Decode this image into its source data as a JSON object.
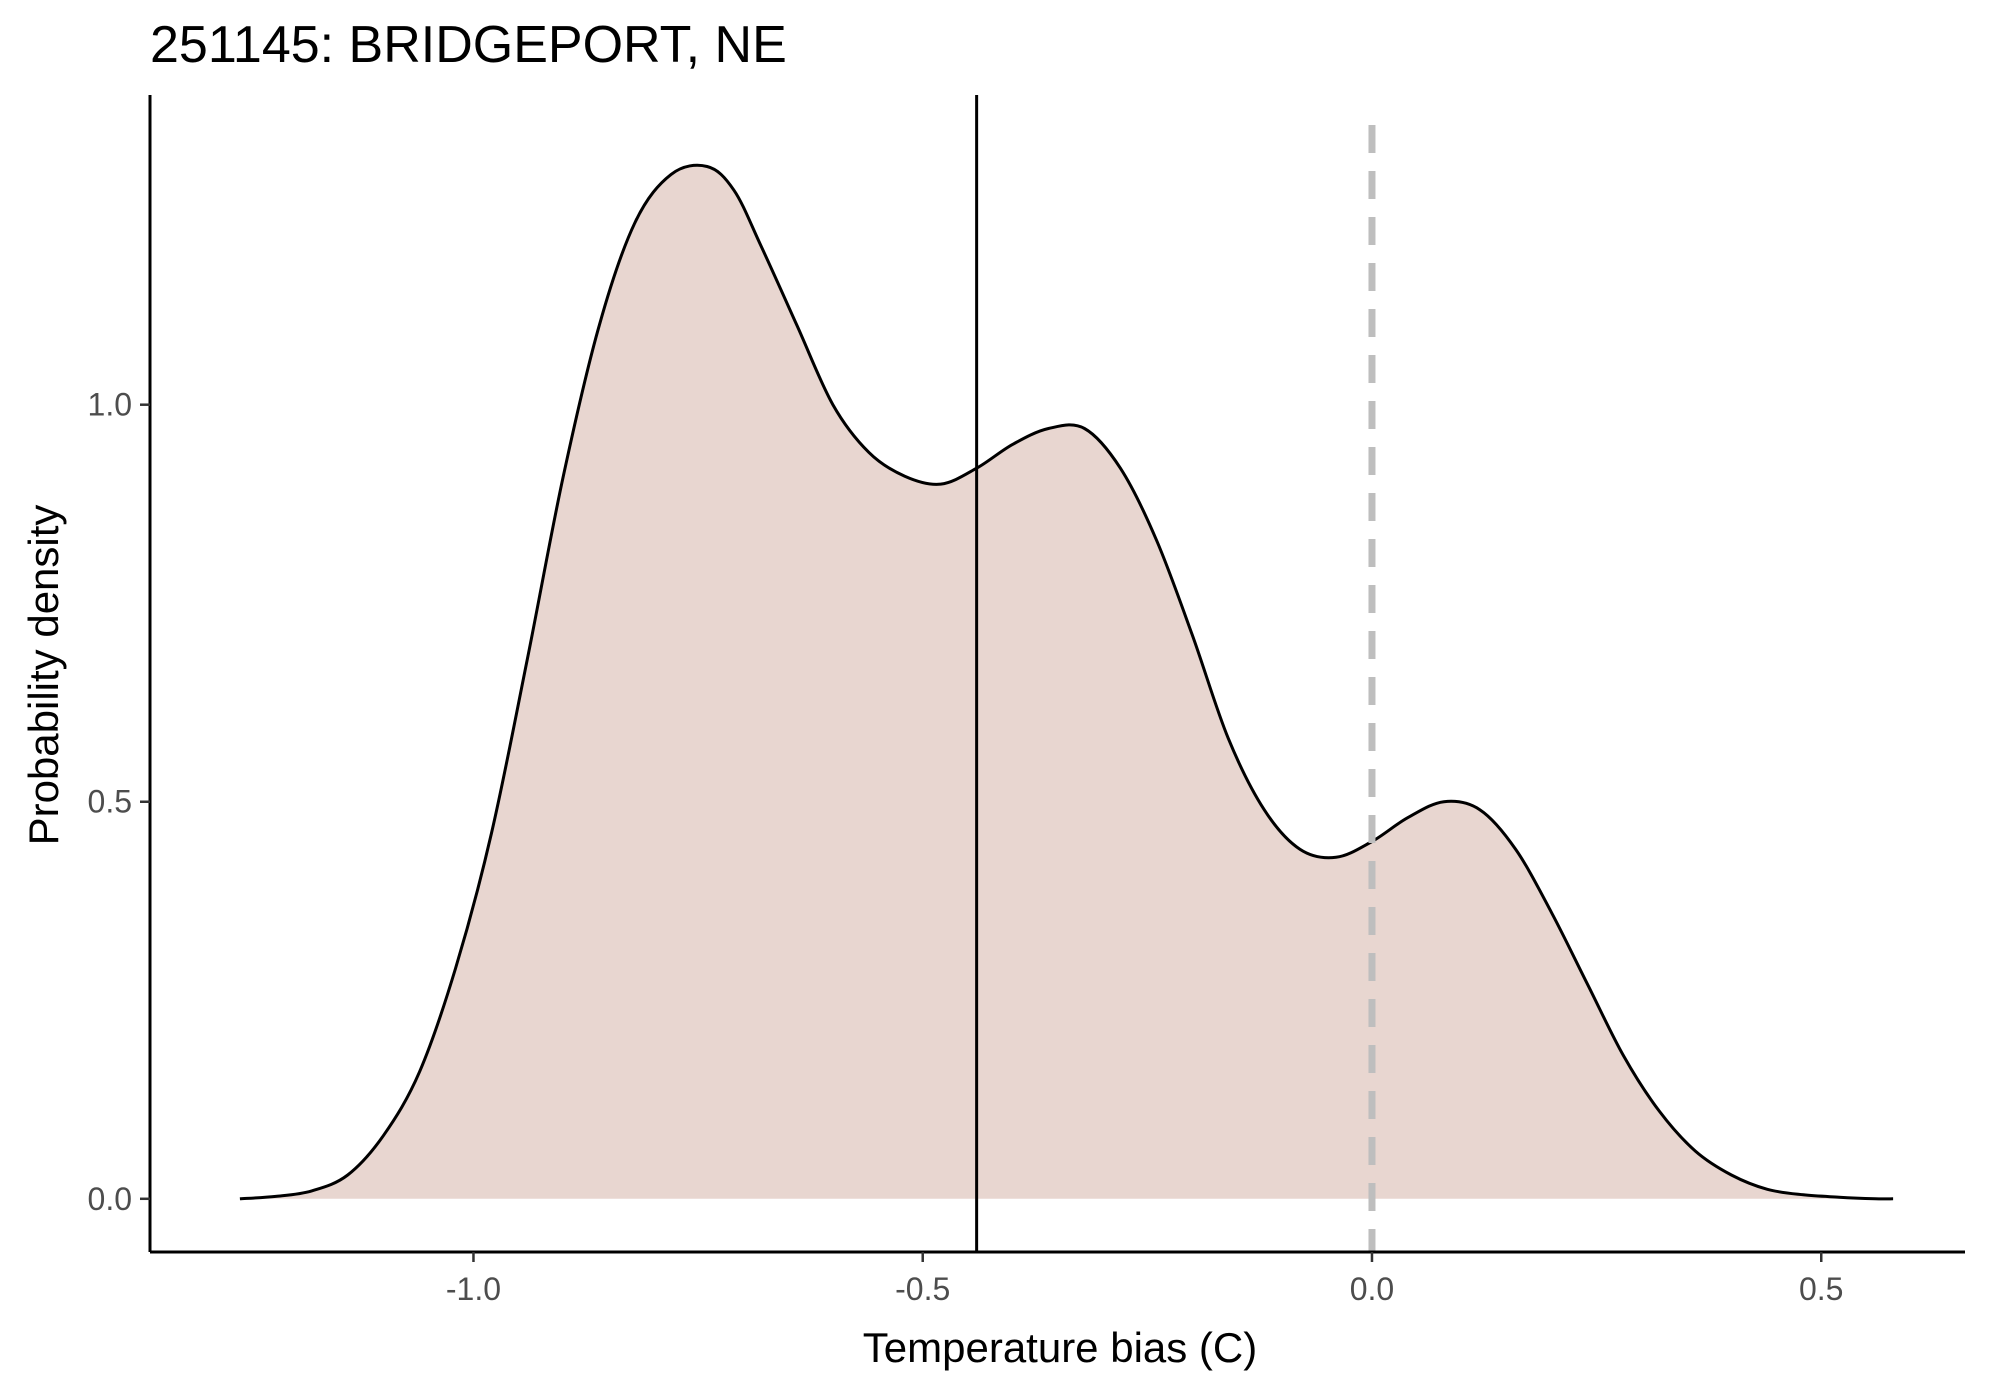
{
  "chart_data": {
    "type": "area",
    "title": "251145: BRIDGEPORT, NE",
    "xlabel": "Temperature bias (C)",
    "ylabel": "Probability density",
    "xlim": [
      -1.36,
      0.66
    ],
    "ylim": [
      -0.067,
      1.39
    ],
    "x_ticks": [
      -1.0,
      -0.5,
      0.0,
      0.5
    ],
    "x_tick_labels": [
      "-1.0",
      "-0.5",
      "0.0",
      "0.5"
    ],
    "y_ticks": [
      0.0,
      0.5,
      1.0
    ],
    "y_tick_labels": [
      "0.0",
      "0.5",
      "1.0"
    ],
    "grid": false,
    "legend": "none",
    "fill_color": "#e8d6d0",
    "line_color": "#000000",
    "series": [
      {
        "x": [
          -1.26,
          -1.22,
          -1.18,
          -1.14,
          -1.1,
          -1.06,
          -1.02,
          -0.98,
          -0.94,
          -0.9,
          -0.86,
          -0.82,
          -0.78,
          -0.74,
          -0.71,
          -0.68,
          -0.64,
          -0.6,
          -0.56,
          -0.52,
          -0.48,
          -0.44,
          -0.4,
          -0.36,
          -0.32,
          -0.28,
          -0.24,
          -0.2,
          -0.16,
          -0.12,
          -0.08,
          -0.04,
          0.0,
          0.04,
          0.08,
          0.12,
          0.16,
          0.2,
          0.24,
          0.28,
          0.32,
          0.36,
          0.4,
          0.44,
          0.48,
          0.52,
          0.56,
          0.58
        ],
        "y": [
          0.0,
          0.003,
          0.01,
          0.03,
          0.08,
          0.16,
          0.29,
          0.46,
          0.68,
          0.91,
          1.1,
          1.23,
          1.29,
          1.3,
          1.27,
          1.2,
          1.1,
          1.0,
          0.94,
          0.91,
          0.9,
          0.92,
          0.95,
          0.97,
          0.97,
          0.92,
          0.83,
          0.71,
          0.58,
          0.49,
          0.44,
          0.43,
          0.45,
          0.48,
          0.5,
          0.49,
          0.44,
          0.36,
          0.27,
          0.18,
          0.11,
          0.06,
          0.03,
          0.012,
          0.005,
          0.002,
          0.0,
          0.0
        ]
      }
    ],
    "reference_lines": [
      {
        "x": -0.44,
        "style": "solid",
        "color": "#000000"
      },
      {
        "x": 0.0,
        "style": "dashed",
        "color": "#bebebe"
      }
    ]
  }
}
